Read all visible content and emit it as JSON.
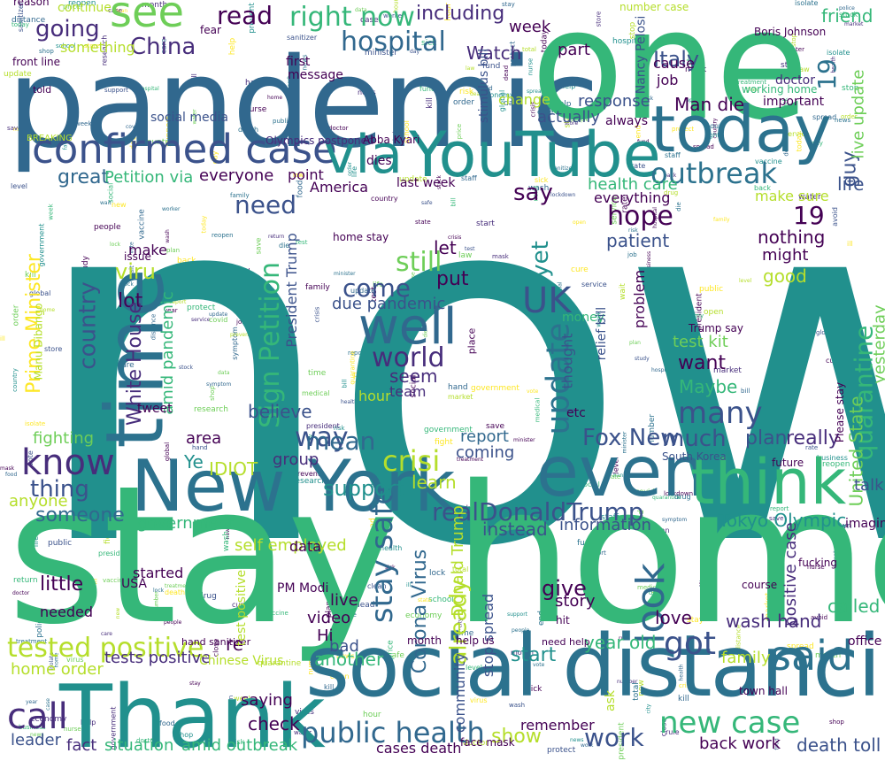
{
  "palette": {
    "teal": "#21908d",
    "green": "#35b779",
    "blue": "#31688e",
    "indigo": "#3b528b",
    "purple": "#440154",
    "lime": "#b5de2b",
    "yellow": "#fde725",
    "lightgreen": "#6ece58"
  },
  "words": [
    {
      "id": "w1",
      "text": "now",
      "color": "#21908d"
    },
    {
      "id": "w2",
      "text": "stay home",
      "color": "#35b779"
    },
    {
      "id": "w3",
      "text": "pandemic",
      "color": "#31688e"
    },
    {
      "id": "w4",
      "text": "one",
      "color": "#35b779"
    },
    {
      "id": "w5",
      "text": "social distancing",
      "color": "#2c728e"
    },
    {
      "id": "w6",
      "text": "YouTube",
      "color": "#21908d"
    },
    {
      "id": "w7",
      "text": "New York",
      "color": "#2c728e"
    },
    {
      "id": "w8",
      "text": "Thank",
      "color": "#21908d"
    },
    {
      "id": "w9",
      "text": "confirmed case",
      "color": "#3b528b"
    },
    {
      "id": "w10",
      "text": "today",
      "color": "#2c728e"
    },
    {
      "id": "w11",
      "text": "time",
      "color": "#2c728e"
    },
    {
      "id": "w12",
      "text": "even",
      "color": "#2c728e"
    },
    {
      "id": "w13",
      "text": "think",
      "color": "#35b779"
    },
    {
      "id": "w14",
      "text": "well",
      "color": "#31688e"
    },
    {
      "id": "w15",
      "text": "see",
      "color": "#6ece58"
    },
    {
      "id": "w16",
      "text": "via",
      "color": "#21908d"
    },
    {
      "id": "w17",
      "text": "right now",
      "color": "#35b779"
    },
    {
      "id": "w18",
      "text": "tested positive",
      "color": "#b5de2b"
    },
    {
      "id": "w19",
      "text": "hospital",
      "color": "#31688e"
    },
    {
      "id": "w20",
      "text": "realDonaldTrump",
      "color": "#3b528b"
    },
    {
      "id": "w21",
      "text": "outbreak",
      "color": "#2c728e"
    },
    {
      "id": "w22",
      "text": "said",
      "color": "#2c728e"
    },
    {
      "id": "w23",
      "text": "public health",
      "color": "#31688e"
    },
    {
      "id": "w24",
      "text": "new case",
      "color": "#35b779"
    },
    {
      "id": "w25",
      "text": "work",
      "color": "#3b528b"
    },
    {
      "id": "w26",
      "text": "call",
      "color": "#472d7b"
    },
    {
      "id": "w27",
      "text": "know",
      "color": "#472d7b"
    },
    {
      "id": "w28",
      "text": "update",
      "color": "#2c728e"
    },
    {
      "id": "w29",
      "text": "crisi",
      "color": "#b5de2b"
    },
    {
      "id": "w30",
      "text": "stay safe",
      "color": "#31688e"
    },
    {
      "id": "w31",
      "text": "UK",
      "color": "#3b528b"
    },
    {
      "id": "w32",
      "text": "come",
      "color": "#3b528b"
    },
    {
      "id": "w33",
      "text": "world",
      "color": "#472d7b"
    },
    {
      "id": "w34",
      "text": "quarantine",
      "color": "#35b779"
    },
    {
      "id": "w35",
      "text": "Sign Petition",
      "color": "#35b779"
    },
    {
      "id": "w36",
      "text": "hope",
      "color": "#440154"
    },
    {
      "id": "w37",
      "text": "got",
      "color": "#3b528b"
    },
    {
      "id": "w38",
      "text": "look",
      "color": "#31688e"
    },
    {
      "id": "w39",
      "text": "many",
      "color": "#3b528b"
    },
    {
      "id": "w40",
      "text": "way",
      "color": "#3b528b"
    },
    {
      "id": "w41",
      "text": "mean",
      "color": "#31688e"
    },
    {
      "id": "w42",
      "text": "much",
      "color": "#3b528b"
    },
    {
      "id": "w43",
      "text": "need",
      "color": "#3b528b"
    },
    {
      "id": "w44",
      "text": "China",
      "color": "#472d7b"
    },
    {
      "id": "w45",
      "text": "read",
      "color": "#440154"
    },
    {
      "id": "w46",
      "text": "going",
      "color": "#472d7b"
    },
    {
      "id": "w47",
      "text": "Prime Minister",
      "color": "#fde725"
    },
    {
      "id": "w48",
      "text": "country",
      "color": "#3b528b"
    },
    {
      "id": "w49",
      "text": "thing",
      "color": "#3b528b"
    },
    {
      "id": "w50",
      "text": "someone",
      "color": "#31688e"
    },
    {
      "id": "w51",
      "text": "anyone",
      "color": "#b5de2b"
    },
    {
      "id": "w52",
      "text": "already",
      "color": "#b5de2b"
    },
    {
      "id": "w53",
      "text": "Corona Virus",
      "color": "#31688e"
    },
    {
      "id": "w54",
      "text": "Fox New",
      "color": "#3b528b"
    },
    {
      "id": "w55",
      "text": "Tokyo Olympic",
      "color": "#21908d"
    },
    {
      "id": "w56",
      "text": "Maybe",
      "color": "#35b779"
    },
    {
      "id": "w57",
      "text": "still",
      "color": "#6ece58"
    },
    {
      "id": "w58",
      "text": "yet",
      "color": "#21908d"
    },
    {
      "id": "w59",
      "text": "19",
      "color": "#2c728e"
    },
    {
      "id": "w60",
      "text": "19",
      "color": "#440154"
    },
    {
      "id": "w61",
      "text": "life",
      "color": "#3b528b"
    },
    {
      "id": "w62",
      "text": "guy",
      "color": "#3b528b"
    },
    {
      "id": "w63",
      "text": "live update",
      "color": "#6ece58"
    },
    {
      "id": "w64",
      "text": "friend",
      "color": "#35b779"
    },
    {
      "id": "w65",
      "text": "Italy",
      "color": "#3b528b"
    },
    {
      "id": "w66",
      "text": "Watch",
      "color": "#472d7b"
    },
    {
      "id": "w67",
      "text": "Man die",
      "color": "#440154"
    },
    {
      "id": "w68",
      "text": "say",
      "color": "#440154"
    },
    {
      "id": "w69",
      "text": "great",
      "color": "#31688e"
    },
    {
      "id": "w70",
      "text": "everyone",
      "color": "#440154"
    },
    {
      "id": "w71",
      "text": "Petition via",
      "color": "#35b779"
    },
    {
      "id": "w72",
      "text": "viru",
      "color": "#b5de2b"
    },
    {
      "id": "w73",
      "text": "lot",
      "color": "#440154"
    },
    {
      "id": "w74",
      "text": "White House",
      "color": "#472d7b"
    },
    {
      "id": "w75",
      "text": "amid pandemic",
      "color": "#35b779"
    },
    {
      "id": "w76",
      "text": "United State",
      "color": "#6ece58"
    },
    {
      "id": "w77",
      "text": "yesterday",
      "color": "#6ece58"
    },
    {
      "id": "w78",
      "text": "plan",
      "color": "#3b528b"
    },
    {
      "id": "w79",
      "text": "really",
      "color": "#472d7b"
    },
    {
      "id": "w80",
      "text": "want",
      "color": "#440154"
    },
    {
      "id": "w81",
      "text": "test kit",
      "color": "#6ece58"
    },
    {
      "id": "w82",
      "text": "nothing",
      "color": "#440154"
    },
    {
      "id": "w83",
      "text": "might",
      "color": "#440154"
    },
    {
      "id": "w84",
      "text": "good",
      "color": "#b5de2b"
    },
    {
      "id": "w85",
      "text": "patient",
      "color": "#3b528b"
    },
    {
      "id": "w86",
      "text": "believe",
      "color": "#3b528b"
    },
    {
      "id": "w87",
      "text": "seem",
      "color": "#472d7b"
    },
    {
      "id": "w88",
      "text": "let",
      "color": "#440154"
    },
    {
      "id": "w89",
      "text": "put",
      "color": "#440154"
    },
    {
      "id": "w90",
      "text": "due pandemic",
      "color": "#3b528b"
    },
    {
      "id": "w91",
      "text": "hour",
      "color": "#b5de2b"
    },
    {
      "id": "w92",
      "text": "team",
      "color": "#472d7b"
    },
    {
      "id": "w93",
      "text": "support",
      "color": "#21908d"
    },
    {
      "id": "w94",
      "text": "learn",
      "color": "#b5de2b"
    },
    {
      "id": "w95",
      "text": "report",
      "color": "#31688e"
    },
    {
      "id": "w96",
      "text": "coming",
      "color": "#3b528b"
    },
    {
      "id": "w97",
      "text": "fighting",
      "color": "#6ece58"
    },
    {
      "id": "w98",
      "text": "IDIOT",
      "color": "#b5de2b"
    },
    {
      "id": "w99",
      "text": "area",
      "color": "#440154"
    },
    {
      "id": "w100",
      "text": "Ye",
      "color": "#21908d"
    },
    {
      "id": "w101",
      "text": "group",
      "color": "#472d7b"
    },
    {
      "id": "w102",
      "text": "self employed",
      "color": "#b5de2b"
    },
    {
      "id": "w103",
      "text": "government",
      "color": "#35b779"
    },
    {
      "id": "w104",
      "text": "instead",
      "color": "#3b528b"
    },
    {
      "id": "w105",
      "text": "information",
      "color": "#3b528b"
    },
    {
      "id": "w106",
      "text": "Donald Trump",
      "color": "#b5de2b"
    },
    {
      "id": "w107",
      "text": "give",
      "color": "#440154"
    },
    {
      "id": "w108",
      "text": "love",
      "color": "#440154"
    },
    {
      "id": "w109",
      "text": "called",
      "color": "#35b779"
    },
    {
      "id": "w110",
      "text": "talk",
      "color": "#3b528b"
    },
    {
      "id": "w111",
      "text": "imagine",
      "color": "#440154"
    },
    {
      "id": "w112",
      "text": "positive case",
      "color": "#472d7b"
    },
    {
      "id": "w113",
      "text": "wash hand",
      "color": "#472d7b"
    },
    {
      "id": "w114",
      "text": "family",
      "color": "#b5de2b"
    },
    {
      "id": "w115",
      "text": "another",
      "color": "#35b779"
    },
    {
      "id": "w116",
      "text": "bad",
      "color": "#3b528b"
    },
    {
      "id": "w117",
      "text": "video",
      "color": "#440154"
    },
    {
      "id": "w118",
      "text": "live",
      "color": "#440154"
    },
    {
      "id": "w119",
      "text": "Hi",
      "color": "#440154"
    },
    {
      "id": "w120",
      "text": "re",
      "color": "#440154"
    },
    {
      "id": "w121",
      "text": "year old",
      "color": "#35b779"
    },
    {
      "id": "w122",
      "text": "story",
      "color": "#440154"
    },
    {
      "id": "w123",
      "text": "start",
      "color": "#21908d"
    },
    {
      "id": "w124",
      "text": "show",
      "color": "#b5de2b"
    },
    {
      "id": "w125",
      "text": "community",
      "color": "#3b528b"
    },
    {
      "id": "w126",
      "text": "stop spread",
      "color": "#3b528b"
    },
    {
      "id": "w127",
      "text": "check",
      "color": "#440154"
    },
    {
      "id": "w128",
      "text": "saying",
      "color": "#440154"
    },
    {
      "id": "w129",
      "text": "situation",
      "color": "#35b779"
    },
    {
      "id": "w130",
      "text": "amid outbreak",
      "color": "#35b779"
    },
    {
      "id": "w131",
      "text": "fact",
      "color": "#472d7b"
    },
    {
      "id": "w132",
      "text": "back work",
      "color": "#440154"
    },
    {
      "id": "w133",
      "text": "death toll",
      "color": "#3b528b"
    },
    {
      "id": "w134",
      "text": "tests positive",
      "color": "#472d7b"
    },
    {
      "id": "w135",
      "text": "home order",
      "color": "#b5de2b"
    },
    {
      "id": "w136",
      "text": "leader",
      "color": "#3b528b"
    },
    {
      "id": "w137",
      "text": "little",
      "color": "#440154"
    },
    {
      "id": "w138",
      "text": "needed",
      "color": "#440154"
    },
    {
      "id": "w139",
      "text": "started",
      "color": "#440154"
    },
    {
      "id": "w140",
      "text": "USA",
      "color": "#440154"
    },
    {
      "id": "w141",
      "text": "PM Modi",
      "color": "#440154"
    },
    {
      "id": "w142",
      "text": "data",
      "color": "#440154"
    },
    {
      "id": "w143",
      "text": "cases death",
      "color": "#440154"
    },
    {
      "id": "w144",
      "text": "remember",
      "color": "#440154"
    },
    {
      "id": "w145",
      "text": "something",
      "color": "#b5de2b"
    },
    {
      "id": "w146",
      "text": "including",
      "color": "#472d7b"
    },
    {
      "id": "w147",
      "text": "week",
      "color": "#440154"
    },
    {
      "id": "w148",
      "text": "part",
      "color": "#440154"
    },
    {
      "id": "w149",
      "text": "cause",
      "color": "#440154"
    },
    {
      "id": "w150",
      "text": "job",
      "color": "#440154"
    },
    {
      "id": "w151",
      "text": "actually",
      "color": "#3b528b"
    },
    {
      "id": "w152",
      "text": "response",
      "color": "#3b528b"
    },
    {
      "id": "w153",
      "text": "change",
      "color": "#b5de2b"
    },
    {
      "id": "w154",
      "text": "health care",
      "color": "#35b779"
    },
    {
      "id": "w155",
      "text": "everything",
      "color": "#440154"
    },
    {
      "id": "w156",
      "text": "make sure",
      "color": "#b5de2b"
    },
    {
      "id": "w157",
      "text": "America",
      "color": "#440154"
    },
    {
      "id": "w158",
      "text": "point",
      "color": "#440154"
    },
    {
      "id": "w159",
      "text": "social media",
      "color": "#3b528b"
    },
    {
      "id": "w160",
      "text": "Nancy Pelosi",
      "color": "#3b528b"
    },
    {
      "id": "w161",
      "text": "important",
      "color": "#440154"
    },
    {
      "id": "w162",
      "text": "doctor",
      "color": "#472d7b"
    },
    {
      "id": "w163",
      "text": "continue",
      "color": "#b5de2b"
    },
    {
      "id": "w164",
      "text": "message",
      "color": "#440154"
    },
    {
      "id": "w165",
      "text": "hand sanitizer",
      "color": "#440154"
    },
    {
      "id": "w166",
      "text": "home stay",
      "color": "#440154"
    },
    {
      "id": "w167",
      "text": "Olympics postponed",
      "color": "#472d7b"
    },
    {
      "id": "w168",
      "text": "last week",
      "color": "#440154"
    },
    {
      "id": "w169",
      "text": "BREAKING",
      "color": "#b5de2b"
    },
    {
      "id": "w170",
      "text": "Boris Johnson",
      "color": "#440154"
    },
    {
      "id": "w171",
      "text": "working home",
      "color": "#35b779"
    },
    {
      "id": "w172",
      "text": "South Korea",
      "color": "#3b528b"
    },
    {
      "id": "w173",
      "text": "money",
      "color": "#35b779"
    },
    {
      "id": "w174",
      "text": "Trump say",
      "color": "#440154"
    },
    {
      "id": "w175",
      "text": "fucking",
      "color": "#440154"
    },
    {
      "id": "w176",
      "text": "office",
      "color": "#440154"
    },
    {
      "id": "w177",
      "text": "make",
      "color": "#440154"
    },
    {
      "id": "w178",
      "text": "issue",
      "color": "#440154"
    },
    {
      "id": "w179",
      "text": "President Trump",
      "color": "#3b528b"
    },
    {
      "id": "w180",
      "text": "Manu Dibango",
      "color": "#b5de2b"
    },
    {
      "id": "w181",
      "text": "problem",
      "color": "#440154"
    },
    {
      "id": "w182",
      "text": "thought",
      "color": "#3b528b"
    },
    {
      "id": "w183",
      "text": "relief bill",
      "color": "#3b528b"
    },
    {
      "id": "w184",
      "text": "always",
      "color": "#440154"
    },
    {
      "id": "w185",
      "text": "stimulus bill",
      "color": "#3b528b"
    },
    {
      "id": "w186",
      "text": "reason",
      "color": "#440154"
    },
    {
      "id": "w187",
      "text": "front line",
      "color": "#440154"
    },
    {
      "id": "w188",
      "text": "told",
      "color": "#440154"
    },
    {
      "id": "w189",
      "text": "number case",
      "color": "#b5de2b"
    },
    {
      "id": "w190",
      "text": "first",
      "color": "#440154"
    },
    {
      "id": "w191",
      "text": "dies",
      "color": "#440154"
    },
    {
      "id": "w192",
      "text": "Abba Kyari",
      "color": "#440154"
    },
    {
      "id": "w193",
      "text": "etc",
      "color": "#440154"
    },
    {
      "id": "w194",
      "text": "Please stay",
      "color": "#440154"
    },
    {
      "id": "w195",
      "text": "future",
      "color": "#440154"
    },
    {
      "id": "w196",
      "text": "fear",
      "color": "#440154"
    },
    {
      "id": "w197",
      "text": "test positive",
      "color": "#b5de2b"
    },
    {
      "id": "w198",
      "text": "Chinese Virus",
      "color": "#b5de2b"
    },
    {
      "id": "w199",
      "text": "face mask",
      "color": "#440154"
    },
    {
      "id": "w200",
      "text": "help us",
      "color": "#440154"
    },
    {
      "id": "w201",
      "text": "month",
      "color": "#440154"
    },
    {
      "id": "w202",
      "text": "ask",
      "color": "#b5de2b"
    },
    {
      "id": "w203",
      "text": "course",
      "color": "#440154"
    },
    {
      "id": "w204",
      "text": "town hall",
      "color": "#440154"
    },
    {
      "id": "w205",
      "text": "need help",
      "color": "#440154"
    },
    {
      "id": "w206",
      "text": "place",
      "color": "#440154"
    },
    {
      "id": "w207",
      "text": "tweet",
      "color": "#440154"
    },
    {
      "id": "w208",
      "text": "hit",
      "color": "#440154"
    }
  ],
  "filler_words": [
    "covid",
    "virus",
    "lockdown",
    "people",
    "case",
    "day",
    "death",
    "test",
    "news",
    "update",
    "help",
    "home",
    "care",
    "worker",
    "new",
    "spread",
    "government",
    "support",
    "stay",
    "safe",
    "health",
    "state",
    "country",
    "city",
    "week",
    "today",
    "mask",
    "work",
    "job",
    "school",
    "family",
    "life",
    "news",
    "report",
    "police",
    "doctor",
    "nurse",
    "medical",
    "hospital",
    "staff",
    "crisis",
    "global",
    "risk",
    "fight",
    "fund",
    "bill",
    "plan",
    "order",
    "rule",
    "law",
    "vote",
    "president",
    "minister",
    "public",
    "service",
    "business",
    "economy",
    "market",
    "stock",
    "price",
    "food",
    "water",
    "store",
    "shop",
    "time",
    "hour",
    "year",
    "month",
    "number",
    "total",
    "rate",
    "level",
    "data",
    "study",
    "research",
    "vaccine",
    "cure",
    "drug",
    "treatment",
    "symptom",
    "sick",
    "ill",
    "die",
    "dead",
    "kill",
    "save",
    "protect",
    "prevent",
    "avoid",
    "wash",
    "hand",
    "clean",
    "sanitizer",
    "distance",
    "social",
    "isolate",
    "quarantine",
    "lock",
    "close",
    "open",
    "reopen",
    "return",
    "back",
    "start",
    "end",
    "stop",
    "wait"
  ]
}
